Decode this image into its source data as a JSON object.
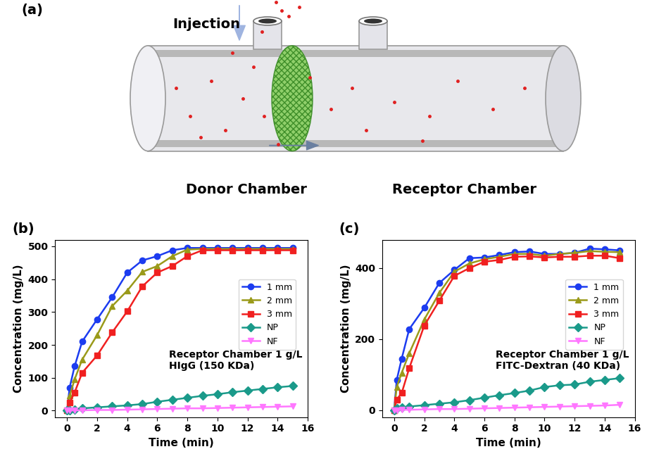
{
  "diagram": {
    "label": "(a)",
    "injection": "Injection",
    "donor": "Donor Chamber",
    "receptor": "Receptor Chamber"
  },
  "chart_data": [
    {
      "type": "line",
      "title": "(b)",
      "x_label": "Time (min)",
      "y_label": "Concentration (mg/L)",
      "annotations": [
        "Receptor Chamber 1 g/L",
        "HIgG (150 KDa)"
      ],
      "x": [
        0,
        0.17,
        0.5,
        1,
        2,
        3,
        4,
        5,
        6,
        7,
        8,
        9,
        10,
        11,
        12,
        13,
        14,
        15
      ],
      "xlim": [
        -0.8,
        16
      ],
      "xticks": [
        0,
        2,
        4,
        6,
        8,
        10,
        12,
        14,
        16
      ],
      "ylim": [
        -20,
        520
      ],
      "yticks": [
        0,
        100,
        200,
        300,
        400,
        500
      ],
      "legend": "center right",
      "series": [
        {
          "name": "1 mm",
          "color": "#1c3cf0",
          "marker": "circle",
          "values": [
            0,
            70,
            135,
            210,
            278,
            345,
            420,
            457,
            470,
            488,
            495,
            495,
            495,
            495,
            495,
            495,
            495,
            495
          ]
        },
        {
          "name": "2 mm",
          "color": "#9a9a1a",
          "marker": "triangle_up",
          "values": [
            0,
            45,
            95,
            155,
            230,
            318,
            365,
            422,
            440,
            470,
            490,
            492,
            492,
            492,
            492,
            492,
            492,
            492
          ]
        },
        {
          "name": "3 mm",
          "color": "#f02020",
          "marker": "square",
          "values": [
            0,
            25,
            55,
            115,
            168,
            238,
            302,
            378,
            420,
            440,
            470,
            488,
            488,
            488,
            488,
            488,
            488,
            488
          ]
        },
        {
          "name": "NP",
          "color": "#1a9a8a",
          "marker": "diamond",
          "values": [
            0,
            2,
            4,
            7,
            10,
            13,
            16,
            20,
            27,
            33,
            39,
            45,
            50,
            56,
            61,
            66,
            71,
            75
          ]
        },
        {
          "name": "NF",
          "color": "#ff77ff",
          "marker": "triangle_down",
          "values": [
            0,
            0,
            1,
            1,
            2,
            2,
            3,
            4,
            5,
            6,
            7,
            7,
            8,
            9,
            10,
            11,
            12,
            13
          ]
        }
      ]
    },
    {
      "type": "line",
      "title": "(c)",
      "x_label": "Time (min)",
      "y_label": "Concentration (mg/L)",
      "annotations": [
        "Receptor Chamber 1 g/L",
        "FITC-Dextran (40 KDa)"
      ],
      "x": [
        0,
        0.17,
        0.5,
        1,
        2,
        3,
        4,
        5,
        6,
        7,
        8,
        9,
        10,
        11,
        12,
        13,
        14,
        15
      ],
      "xlim": [
        -0.8,
        16
      ],
      "xticks": [
        0,
        2,
        4,
        6,
        8,
        10,
        12,
        14,
        16
      ],
      "ylim": [
        -20,
        480
      ],
      "yticks": [
        0,
        200,
        400
      ],
      "legend": "center right",
      "series": [
        {
          "name": "1 mm",
          "color": "#1c3cf0",
          "marker": "circle",
          "values": [
            0,
            85,
            145,
            228,
            288,
            358,
            395,
            428,
            430,
            437,
            445,
            447,
            440,
            440,
            443,
            455,
            453,
            450
          ]
        },
        {
          "name": "2 mm",
          "color": "#9a9a1a",
          "marker": "triangle_up",
          "values": [
            0,
            65,
            105,
            160,
            255,
            330,
            390,
            413,
            425,
            432,
            440,
            440,
            435,
            440,
            443,
            448,
            446,
            445
          ]
        },
        {
          "name": "3 mm",
          "color": "#f02020",
          "marker": "square",
          "values": [
            0,
            30,
            48,
            118,
            238,
            308,
            378,
            400,
            418,
            423,
            432,
            433,
            430,
            432,
            432,
            435,
            435,
            428
          ]
        },
        {
          "name": "NP",
          "color": "#1a9a8a",
          "marker": "diamond",
          "values": [
            0,
            5,
            8,
            10,
            14,
            18,
            22,
            28,
            35,
            42,
            48,
            55,
            65,
            70,
            72,
            80,
            85,
            90
          ]
        },
        {
          "name": "NF",
          "color": "#ff77ff",
          "marker": "triangle_down",
          "values": [
            0,
            0,
            1,
            1,
            2,
            3,
            3,
            4,
            5,
            6,
            7,
            8,
            9,
            10,
            11,
            12,
            13,
            15
          ]
        }
      ]
    }
  ]
}
